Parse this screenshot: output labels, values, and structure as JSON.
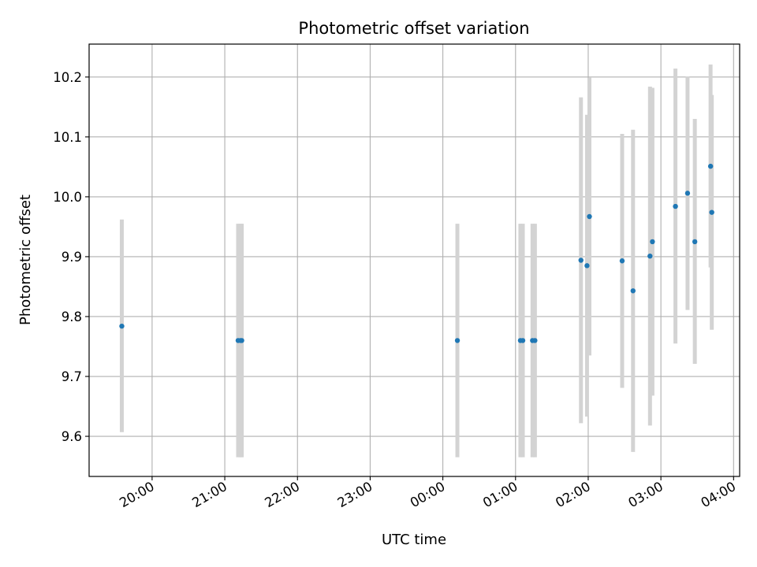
{
  "chart_data": {
    "type": "scatter",
    "title": "Photometric offset variation",
    "xlabel": "UTC time",
    "ylabel": "Photometric offset",
    "xlim": [
      "19:08",
      "04:05"
    ],
    "ylim": [
      9.533,
      10.255
    ],
    "grid": true,
    "x_ticks": [
      "20:00",
      "21:00",
      "22:00",
      "23:00",
      "00:00",
      "01:00",
      "02:00",
      "03:00",
      "04:00"
    ],
    "y_ticks": [
      "9.6",
      "9.7",
      "9.8",
      "9.9",
      "10.0",
      "10.1",
      "10.2"
    ],
    "marker_color": "#1f77b4",
    "errorbar_color": "#d3d3d3",
    "points": [
      {
        "x": "19:35",
        "y": 9.784,
        "ylow": 9.607,
        "yhigh": 9.962
      },
      {
        "x": "21:11",
        "y": 9.76,
        "ylow": 9.565,
        "yhigh": 9.955
      },
      {
        "x": "21:13",
        "y": 9.76,
        "ylow": 9.565,
        "yhigh": 9.955
      },
      {
        "x": "21:14",
        "y": 9.76,
        "ylow": 9.565,
        "yhigh": 9.955
      },
      {
        "x": "00:12",
        "y": 9.76,
        "ylow": 9.565,
        "yhigh": 9.955
      },
      {
        "x": "01:04",
        "y": 9.76,
        "ylow": 9.565,
        "yhigh": 9.955
      },
      {
        "x": "01:06",
        "y": 9.76,
        "ylow": 9.565,
        "yhigh": 9.955
      },
      {
        "x": "01:14",
        "y": 9.76,
        "ylow": 9.565,
        "yhigh": 9.955
      },
      {
        "x": "01:16",
        "y": 9.76,
        "ylow": 9.565,
        "yhigh": 9.955
      },
      {
        "x": "01:54",
        "y": 9.894,
        "ylow": 9.622,
        "yhigh": 10.166
      },
      {
        "x": "01:59",
        "y": 9.885,
        "ylow": 9.633,
        "yhigh": 10.137
      },
      {
        "x": "02:01",
        "y": 9.967,
        "ylow": 9.735,
        "yhigh": 10.199
      },
      {
        "x": "02:28",
        "y": 9.893,
        "ylow": 9.681,
        "yhigh": 10.105
      },
      {
        "x": "02:37",
        "y": 9.843,
        "ylow": 9.574,
        "yhigh": 10.112
      },
      {
        "x": "02:51",
        "y": 9.901,
        "ylow": 9.618,
        "yhigh": 10.184
      },
      {
        "x": "02:53",
        "y": 9.925,
        "ylow": 9.668,
        "yhigh": 10.182
      },
      {
        "x": "03:12",
        "y": 9.984,
        "ylow": 9.755,
        "yhigh": 10.214
      },
      {
        "x": "03:22",
        "y": 10.006,
        "ylow": 9.811,
        "yhigh": 10.201
      },
      {
        "x": "03:28",
        "y": 9.925,
        "ylow": 9.721,
        "yhigh": 10.13
      },
      {
        "x": "03:41",
        "y": 10.051,
        "ylow": 9.882,
        "yhigh": 10.221
      },
      {
        "x": "03:42",
        "y": 9.974,
        "ylow": 9.778,
        "yhigh": 10.17
      }
    ]
  }
}
